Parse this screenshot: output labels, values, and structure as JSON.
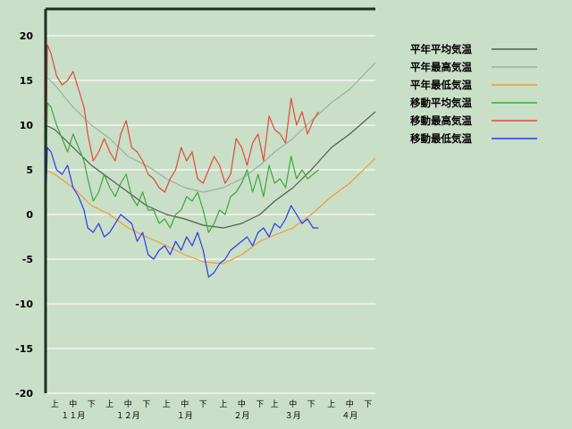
{
  "chart_data": {
    "type": "line",
    "ylim": [
      -20,
      23
    ],
    "yticks": [
      20,
      15,
      10,
      5,
      0,
      -5,
      -10,
      -15,
      -20
    ],
    "ytick_labels": [
      "20",
      "15",
      "10",
      "5",
      "0",
      "-5",
      "-10",
      "-15",
      "-20"
    ],
    "x_range_days": [
      0,
      180
    ],
    "x_unit": "days from 1 Nov (periods of ~10 days: 上/中/下)",
    "period_ticks": [
      {
        "label": "上",
        "day": 5
      },
      {
        "label": "中",
        "day": 15
      },
      {
        "label": "下",
        "day": 25
      },
      {
        "label": "上",
        "day": 35
      },
      {
        "label": "中",
        "day": 45
      },
      {
        "label": "下",
        "day": 55
      },
      {
        "label": "上",
        "day": 66
      },
      {
        "label": "中",
        "day": 76
      },
      {
        "label": "下",
        "day": 86
      },
      {
        "label": "上",
        "day": 97
      },
      {
        "label": "中",
        "day": 107
      },
      {
        "label": "下",
        "day": 117
      },
      {
        "label": "上",
        "day": 125
      },
      {
        "label": "中",
        "day": 135
      },
      {
        "label": "下",
        "day": 145
      },
      {
        "label": "上",
        "day": 156
      },
      {
        "label": "中",
        "day": 166
      },
      {
        "label": "下",
        "day": 176
      }
    ],
    "month_labels": [
      {
        "label": "１１月",
        "day": 15
      },
      {
        "label": "１２月",
        "day": 45
      },
      {
        "label": "１月",
        "day": 76
      },
      {
        "label": "２月",
        "day": 107
      },
      {
        "label": "３月",
        "day": 135
      },
      {
        "label": "４月",
        "day": 166
      }
    ],
    "grid": true,
    "legend_position": "right",
    "series": [
      {
        "name": "平年平均気温",
        "color": "#4e5d4e",
        "x": [
          0,
          5,
          15,
          25,
          35,
          45,
          55,
          66,
          76,
          86,
          97,
          107,
          117,
          125,
          135,
          145,
          156,
          166,
          180
        ],
        "y": [
          10,
          9.5,
          7.5,
          5.5,
          4,
          2.5,
          1,
          0,
          -0.5,
          -1.2,
          -1.5,
          -1,
          0,
          1.5,
          3,
          5,
          7.5,
          9,
          11.5
        ]
      },
      {
        "name": "平年最高気温",
        "color": "#9ab09a",
        "x": [
          0,
          5,
          15,
          25,
          35,
          45,
          55,
          66,
          76,
          86,
          97,
          107,
          117,
          125,
          135,
          145,
          156,
          166,
          180
        ],
        "y": [
          15.5,
          14.5,
          12,
          10,
          8.5,
          6.5,
          5.5,
          4,
          3,
          2.5,
          3,
          4,
          5.5,
          7,
          8.5,
          10.5,
          12.5,
          14,
          17
        ]
      },
      {
        "name": "平年最低気温",
        "color": "#ee9a3a",
        "x": [
          0,
          5,
          15,
          25,
          35,
          45,
          55,
          66,
          76,
          86,
          97,
          107,
          117,
          125,
          135,
          145,
          156,
          166,
          180
        ],
        "y": [
          5,
          4.5,
          3,
          1,
          0,
          -1.5,
          -2.5,
          -3.5,
          -4.5,
          -5.3,
          -5.5,
          -4.5,
          -3,
          -2.3,
          -1.5,
          0,
          2,
          3.5,
          6.3
        ]
      },
      {
        "name": "移動平均気温",
        "color": "#3aa83a",
        "x": [
          0,
          1,
          3,
          6,
          9,
          12,
          15,
          18,
          21,
          23,
          26,
          29,
          32,
          35,
          38,
          41,
          44,
          47,
          50,
          53,
          56,
          59,
          62,
          65,
          68,
          71,
          74,
          77,
          80,
          83,
          86,
          89,
          92,
          95,
          98,
          101,
          104,
          107,
          110,
          113,
          116,
          119,
          122,
          125,
          128,
          131,
          134,
          137,
          140,
          143,
          146,
          149
        ],
        "y": [
          0,
          12.5,
          12,
          10,
          8.5,
          7,
          9,
          7.5,
          6,
          4,
          1.5,
          2.5,
          4.5,
          3,
          2,
          3.5,
          4.5,
          2,
          1,
          2.5,
          0.5,
          0.5,
          -1,
          -0.5,
          -1.5,
          0,
          0.5,
          2,
          1.5,
          2.5,
          0.5,
          -2,
          -1,
          0.5,
          0,
          2,
          2.5,
          3.5,
          5,
          2.5,
          4.5,
          2,
          5.5,
          3.5,
          4,
          3,
          6.5,
          4,
          5,
          4,
          4.5,
          5
        ]
      },
      {
        "name": "移動最高気温",
        "color": "#e04a3a",
        "x": [
          0,
          1,
          3,
          6,
          9,
          12,
          15,
          18,
          21,
          23,
          26,
          29,
          32,
          35,
          38,
          41,
          44,
          47,
          50,
          53,
          56,
          59,
          62,
          65,
          68,
          71,
          74,
          77,
          80,
          83,
          86,
          89,
          92,
          95,
          98,
          101,
          104,
          107,
          110,
          113,
          116,
          119,
          122,
          125,
          128,
          131,
          134,
          137,
          140,
          143,
          146,
          149
        ],
        "y": [
          0,
          19,
          18,
          15.5,
          14.5,
          15,
          16,
          14,
          12,
          9,
          6,
          7,
          8.5,
          7,
          6,
          9,
          10.5,
          7.5,
          7,
          6,
          4.5,
          4,
          3,
          2.5,
          4,
          5,
          7.5,
          6,
          7,
          4,
          3.5,
          5,
          6.5,
          5.5,
          3.5,
          4.5,
          8.5,
          7.5,
          5.5,
          8,
          9,
          6,
          11,
          9.5,
          9,
          8,
          13,
          10,
          11.5,
          9,
          10.5,
          11.5
        ]
      },
      {
        "name": "移動最低気温",
        "color": "#2a3aee",
        "x": [
          0,
          1,
          3,
          6,
          9,
          12,
          15,
          18,
          21,
          23,
          26,
          29,
          32,
          35,
          38,
          41,
          44,
          47,
          50,
          53,
          56,
          59,
          62,
          65,
          68,
          71,
          74,
          77,
          80,
          83,
          86,
          89,
          92,
          95,
          98,
          101,
          104,
          107,
          110,
          113,
          116,
          119,
          122,
          125,
          128,
          131,
          134,
          137,
          140,
          143,
          146,
          149
        ],
        "y": [
          0,
          7.5,
          7,
          5,
          4.5,
          5.5,
          3,
          2,
          0.5,
          -1.5,
          -2,
          -1,
          -2.5,
          -2,
          -1,
          0,
          -0.5,
          -1,
          -3,
          -2,
          -4.5,
          -5,
          -4,
          -3.5,
          -4.5,
          -3,
          -4,
          -2.5,
          -3.5,
          -2,
          -4,
          -7,
          -6.5,
          -5.5,
          -5,
          -4,
          -3.5,
          -3,
          -2.5,
          -3.5,
          -2,
          -1.5,
          -2.5,
          -1,
          -1.5,
          -0.5,
          1,
          0,
          -1,
          -0.5,
          -1.5,
          -1.5
        ]
      }
    ]
  }
}
